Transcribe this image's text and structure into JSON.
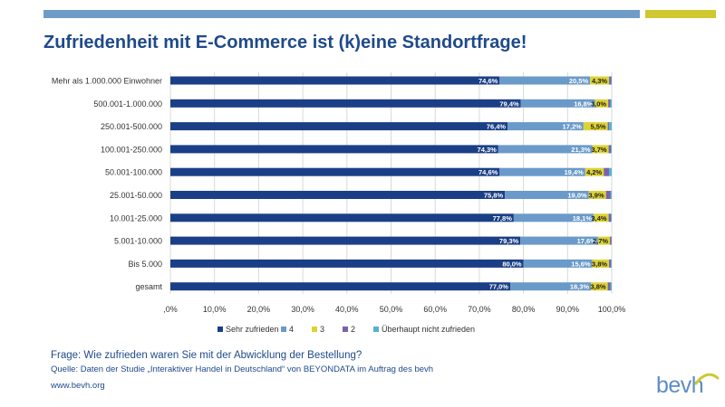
{
  "header": {
    "title": "Zufriedenheit mit E-Commerce ist (k)eine Standortfrage!"
  },
  "colors": {
    "accent_blue": "#6f9cc6",
    "accent_yellow": "#cfc830",
    "title_blue": "#1f4a8a"
  },
  "chart_data": {
    "type": "bar",
    "orientation": "horizontal",
    "stacked": true,
    "categories": [
      "Mehr als 1.000.000 Einwohner",
      "500.001-1.000.000",
      "250.001-500.000",
      "100.001-250.000",
      "50.001-100.000",
      "25.001-50.000",
      "10.001-25.000",
      "5.001-10.000",
      "Bis 5.000",
      "gesamt"
    ],
    "series": [
      {
        "name": "Sehr zufrieden",
        "color": "#1b3f87",
        "values": [
          74.6,
          79.4,
          76.4,
          74.3,
          74.6,
          75.8,
          77.8,
          79.3,
          80.0,
          77.0
        ],
        "labels": [
          "74,6%",
          "79,4%",
          "76,4%",
          "74,3%",
          "74,6%",
          "75,8%",
          "77,8%",
          "79,3%",
          "80,0%",
          "77,0%"
        ]
      },
      {
        "name": "4",
        "color": "#6a9ac9",
        "values": [
          20.5,
          16.8,
          17.2,
          21.3,
          19.4,
          19.0,
          18.1,
          17.6,
          15.6,
          18.3
        ],
        "labels": [
          "20,5%",
          "16,8%",
          "17,2%",
          "21,3%",
          "19,4%",
          "19,0%",
          "18,1%",
          "17,6%",
          "15,6%",
          "18,3%"
        ]
      },
      {
        "name": "3",
        "color": "#ddd335",
        "values": [
          4.3,
          3.0,
          5.5,
          3.7,
          4.2,
          3.9,
          3.4,
          2.7,
          3.8,
          3.8
        ],
        "labels": [
          "4,3%",
          "3,0%",
          "5,5%",
          "3,7%",
          "4,2%",
          "3,9%",
          "3,4%",
          "2,7%",
          "3,8%",
          "3,8%"
        ]
      },
      {
        "name": "2",
        "color": "#7b62a8",
        "values": [
          0.5,
          0.5,
          0.3,
          0.5,
          1.2,
          1.0,
          0.5,
          0.3,
          0.4,
          0.6
        ],
        "labels": [
          "",
          "",
          "",
          "",
          "",
          "",
          "",
          "",
          "",
          ""
        ]
      },
      {
        "name": "Überhaupt nicht zufrieden",
        "color": "#55b1d6",
        "values": [
          0.1,
          0.3,
          0.6,
          0.2,
          0.6,
          0.3,
          0.2,
          0.1,
          0.2,
          0.3
        ],
        "labels": [
          "",
          "",
          "",
          "",
          "",
          "",
          "",
          "",
          "",
          ""
        ]
      }
    ],
    "x_ticks": [
      ",0%",
      "10,0%",
      "20,0%",
      "30,0%",
      "40,0%",
      "50,0%",
      "60,0%",
      "70,0%",
      "80,0%",
      "90,0%",
      "100,0%"
    ],
    "xlim": [
      0,
      100
    ],
    "grid": true,
    "legend": "bottom"
  },
  "footer": {
    "question": "Frage: Wie zufrieden waren Sie mit der Abwicklung der Bestellung?",
    "source": "Quelle: Daten der Studie „Interaktiver Handel in Deutschland“ von BEYONDATA im Auftrag des bevh",
    "url": "www.bevh.org"
  },
  "logo": {
    "text": "bevh"
  }
}
